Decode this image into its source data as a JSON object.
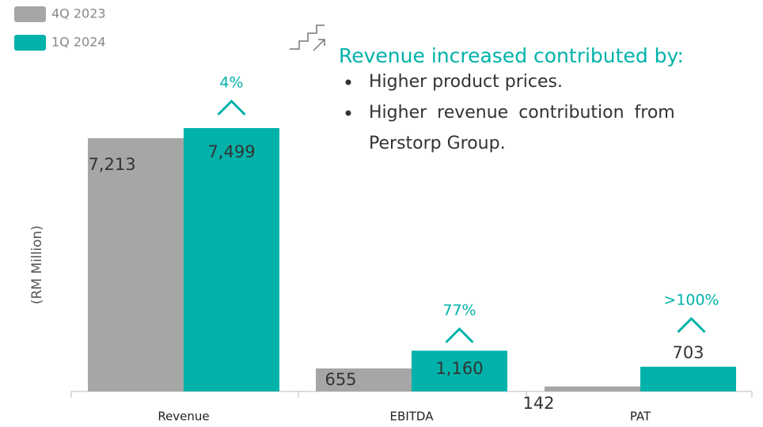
{
  "chart_data": {
    "type": "bar",
    "y_axis_label": "(RM Million)",
    "categories": [
      "Revenue",
      "EBITDA",
      "PAT"
    ],
    "series": [
      {
        "name": "4Q 2023",
        "color": "#a6a6a6",
        "values": [
          7213,
          655,
          142
        ],
        "value_labels": [
          "7,213",
          "655",
          "142"
        ]
      },
      {
        "name": "1Q 2024",
        "color": "#00b2a9",
        "values": [
          7499,
          1160,
          703
        ],
        "value_labels": [
          "7,499",
          "1,160",
          "703"
        ]
      }
    ],
    "change_labels": [
      "4%",
      "77%",
      ">100%"
    ],
    "commentary": {
      "heading": "Revenue increased contributed by:",
      "bullets": [
        [
          "Higher product prices."
        ],
        [
          "Higher revenue contribution from",
          "Perstorp Group."
        ]
      ]
    }
  }
}
